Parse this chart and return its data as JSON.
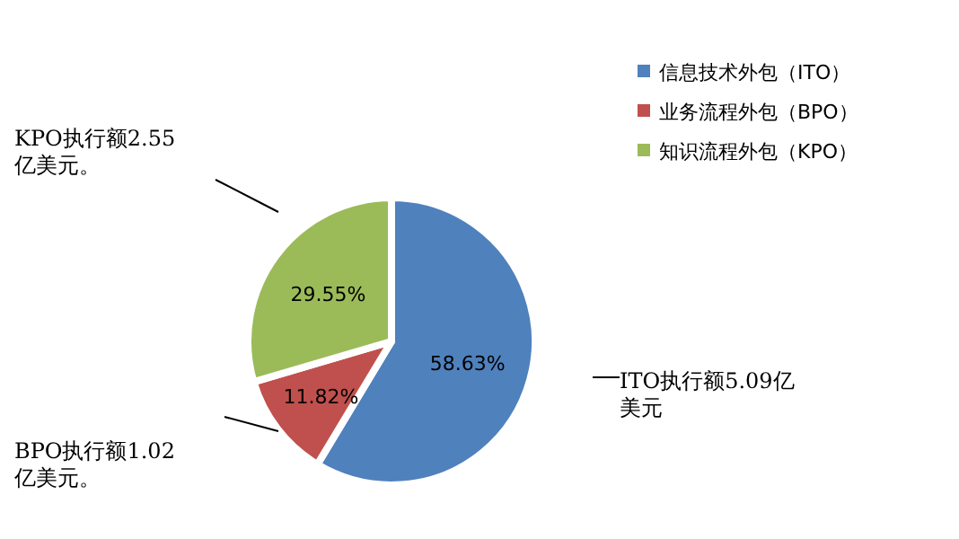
{
  "chart_data": {
    "type": "pie",
    "categories": [
      "信息技术外包（ITO）",
      "业务流程外包（BPO）",
      "知识流程外包（KPO）"
    ],
    "values": [
      58.63,
      11.82,
      29.55
    ],
    "colors": [
      "#4f81bd",
      "#c0504d",
      "#9bbb59"
    ],
    "value_labels": [
      "58.63%",
      "11.82%",
      "29.55%"
    ],
    "legend": "top right",
    "annotations": [
      "ITO执行额5.09亿美元",
      "BPO执行额1.02亿美元。",
      "KPO执行额2.55亿美元。"
    ]
  }
}
